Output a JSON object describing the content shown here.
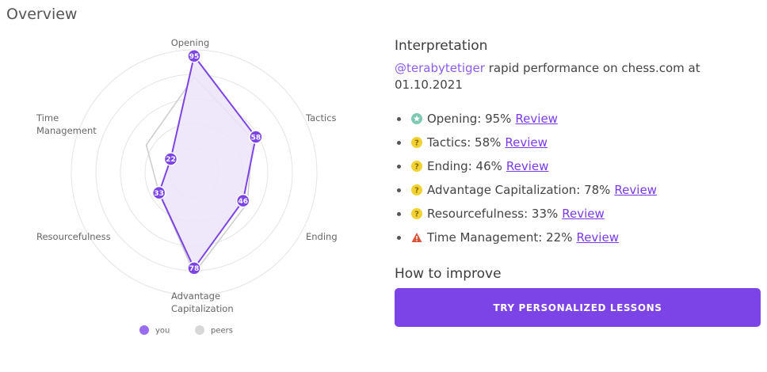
{
  "page": {
    "title": "Overview"
  },
  "chart_data": {
    "type": "radar",
    "axes": [
      {
        "label_lines": [
          "Opening"
        ]
      },
      {
        "label_lines": [
          "Tactics"
        ]
      },
      {
        "label_lines": [
          "Ending"
        ]
      },
      {
        "label_lines": [
          "Advantage",
          "Capitalization"
        ]
      },
      {
        "label_lines": [
          "Resourcefulness"
        ]
      },
      {
        "label_lines": [
          "Time",
          "Management"
        ]
      }
    ],
    "range": [
      0,
      100
    ],
    "rings": 5,
    "series": [
      {
        "name": "you",
        "values": [
          95,
          58,
          46,
          78,
          33,
          22
        ],
        "color": "#7c44e6",
        "fill": "#ece4fa"
      },
      {
        "name": "peers",
        "values": [
          78,
          55,
          50,
          82,
          33,
          45
        ],
        "color": "#cfcfcf"
      }
    ],
    "legend": {
      "position": "bottom"
    }
  },
  "interpretation": {
    "title": "Interpretation",
    "username": "@terabytetiger",
    "text": " rapid performance on chess.com at 01.10.2021",
    "review_label": "Review",
    "metrics": [
      {
        "text": "Opening: 95%",
        "icon": "star-icon",
        "color": "#7ec9b3"
      },
      {
        "text": "Tactics: 58%",
        "icon": "question-icon",
        "color": "#f2d232"
      },
      {
        "text": "Ending: 46%",
        "icon": "question-icon",
        "color": "#f2d232"
      },
      {
        "text": "Advantage Capitalization: 78%",
        "icon": "question-icon",
        "color": "#f2d232"
      },
      {
        "text": "Resourcefulness: 33%",
        "icon": "question-icon",
        "color": "#f2d232"
      },
      {
        "text": "Time Management: 22%",
        "icon": "warning-icon",
        "color": "#d9553a"
      }
    ]
  },
  "improve": {
    "title": "How to improve",
    "button_label": "TRY PERSONALIZED LESSONS"
  }
}
